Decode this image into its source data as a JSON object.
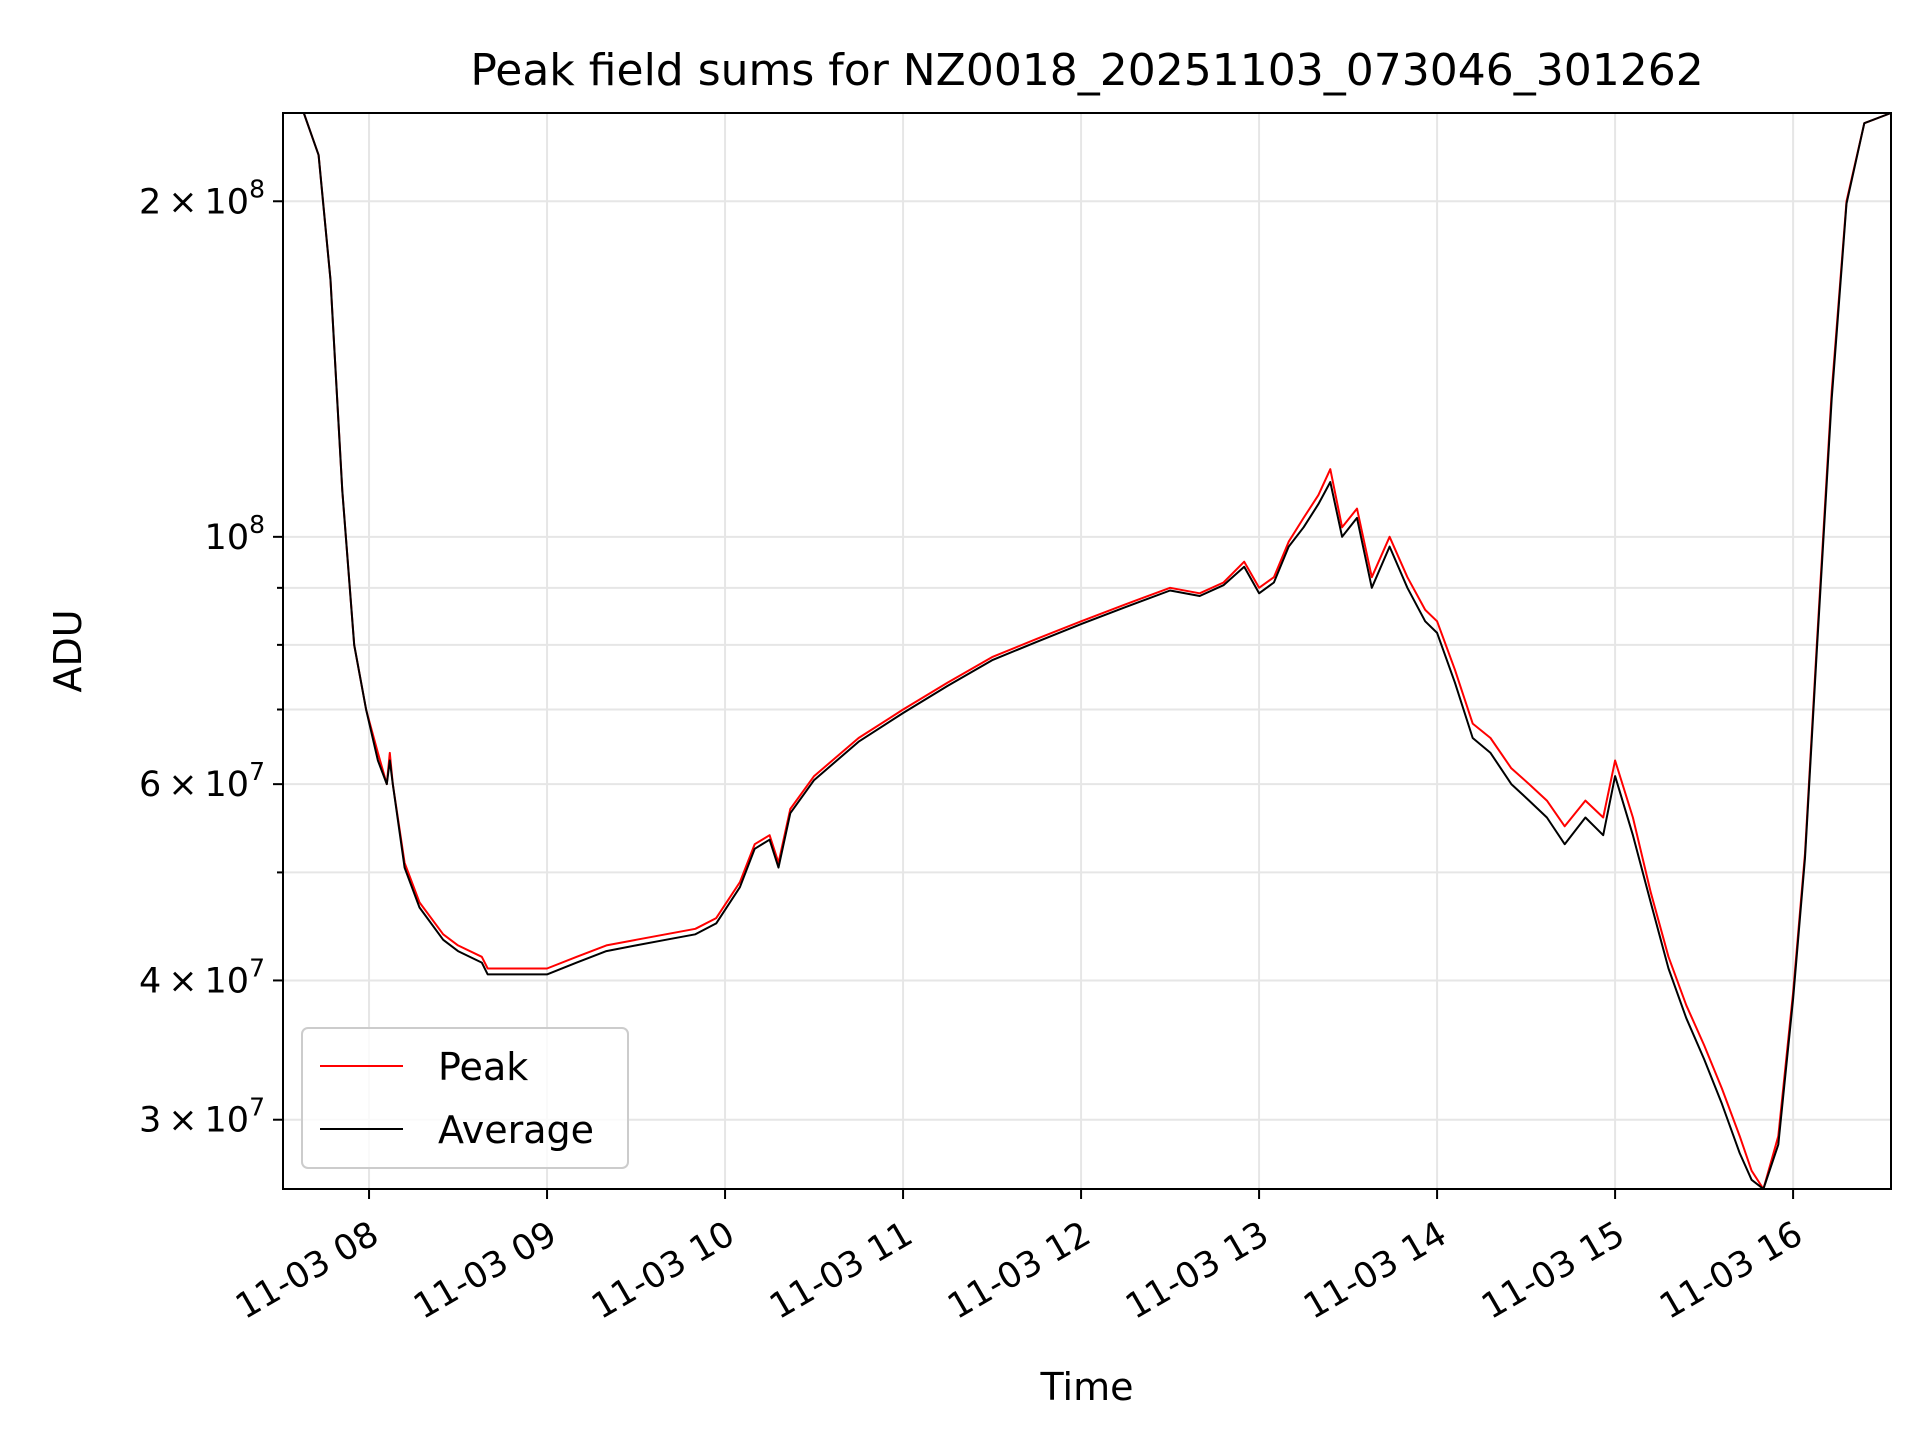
{
  "chart_data": {
    "type": "line",
    "title": "Peak field sums for NZ0018_20251103_073046_301262",
    "xlabel": "Time",
    "ylabel": "ADU",
    "y_scale": "log",
    "ylim": [
      26000000,
      240000000
    ],
    "xlim": [
      "2025-11-03 07:31",
      "2025-11-03 16:33"
    ],
    "grid": true,
    "legend_position": "bottom-left",
    "x_ticks": [
      {
        "label": "11-03 08",
        "value": "2025-11-03 08:00"
      },
      {
        "label": "11-03 09",
        "value": "2025-11-03 09:00"
      },
      {
        "label": "11-03 10",
        "value": "2025-11-03 10:00"
      },
      {
        "label": "11-03 11",
        "value": "2025-11-03 11:00"
      },
      {
        "label": "11-03 12",
        "value": "2025-11-03 12:00"
      },
      {
        "label": "11-03 13",
        "value": "2025-11-03 13:00"
      },
      {
        "label": "11-03 14",
        "value": "2025-11-03 14:00"
      },
      {
        "label": "11-03 15",
        "value": "2025-11-03 15:00"
      },
      {
        "label": "11-03 16",
        "value": "2025-11-03 16:00"
      }
    ],
    "y_ticks": [
      {
        "mantissa": "3",
        "exp": "7",
        "value": 30000000
      },
      {
        "mantissa": "4",
        "exp": "7",
        "value": 40000000
      },
      {
        "mantissa": "6",
        "exp": "7",
        "value": 60000000
      },
      {
        "mantissa": "",
        "exp": "8",
        "value": 100000000
      },
      {
        "mantissa": "2",
        "exp": "8",
        "value": 200000000
      }
    ],
    "y_minor_gridlines": [
      50000000,
      70000000,
      80000000,
      90000000
    ],
    "series": [
      {
        "name": "Peak",
        "color": "#ff0000",
        "x": [
          "2025-11-03 07:31",
          "2025-11-03 07:38",
          "2025-11-03 07:43",
          "2025-11-03 07:47",
          "2025-11-03 07:51",
          "2025-11-03 07:55",
          "2025-11-03 07:59",
          "2025-11-03 08:03",
          "2025-11-03 08:06",
          "2025-11-03 08:07",
          "2025-11-03 08:08",
          "2025-11-03 08:12",
          "2025-11-03 08:17",
          "2025-11-03 08:25",
          "2025-11-03 08:30",
          "2025-11-03 08:38",
          "2025-11-03 08:40",
          "2025-11-03 08:50",
          "2025-11-03 09:00",
          "2025-11-03 09:10",
          "2025-11-03 09:20",
          "2025-11-03 09:30",
          "2025-11-03 09:40",
          "2025-11-03 09:50",
          "2025-11-03 09:57",
          "2025-11-03 10:05",
          "2025-11-03 10:10",
          "2025-11-03 10:15",
          "2025-11-03 10:18",
          "2025-11-03 10:22",
          "2025-11-03 10:30",
          "2025-11-03 10:45",
          "2025-11-03 11:00",
          "2025-11-03 11:15",
          "2025-11-03 11:30",
          "2025-11-03 11:45",
          "2025-11-03 12:00",
          "2025-11-03 12:15",
          "2025-11-03 12:30",
          "2025-11-03 12:40",
          "2025-11-03 12:48",
          "2025-11-03 12:55",
          "2025-11-03 13:00",
          "2025-11-03 13:05",
          "2025-11-03 13:10",
          "2025-11-03 13:15",
          "2025-11-03 13:20",
          "2025-11-03 13:24",
          "2025-11-03 13:28",
          "2025-11-03 13:33",
          "2025-11-03 13:38",
          "2025-11-03 13:44",
          "2025-11-03 13:50",
          "2025-11-03 13:56",
          "2025-11-03 14:00",
          "2025-11-03 14:06",
          "2025-11-03 14:12",
          "2025-11-03 14:18",
          "2025-11-03 14:25",
          "2025-11-03 14:31",
          "2025-11-03 14:37",
          "2025-11-03 14:43",
          "2025-11-03 14:50",
          "2025-11-03 14:56",
          "2025-11-03 15:00",
          "2025-11-03 15:06",
          "2025-11-03 15:12",
          "2025-11-03 15:18",
          "2025-11-03 15:24",
          "2025-11-03 15:30",
          "2025-11-03 15:36",
          "2025-11-03 15:42",
          "2025-11-03 15:46",
          "2025-11-03 15:50",
          "2025-11-03 15:55",
          "2025-11-03 16:00",
          "2025-11-03 16:04",
          "2025-11-03 16:08",
          "2025-11-03 16:13",
          "2025-11-03 16:18",
          "2025-11-03 16:24",
          "2025-11-03 16:33"
        ],
        "y": [
          240000000,
          240000000,
          220000000,
          170000000,
          110000000,
          80000000,
          70000000,
          64000000,
          60000000,
          64000000,
          60000000,
          51000000,
          47000000,
          44000000,
          43000000,
          42000000,
          41000000,
          41000000,
          41000000,
          42000000,
          43000000,
          43500000,
          44000000,
          44500000,
          45500000,
          49000000,
          53000000,
          54000000,
          51000000,
          57000000,
          61000000,
          66000000,
          70000000,
          74000000,
          78000000,
          81000000,
          84000000,
          87000000,
          90000000,
          89000000,
          91000000,
          95000000,
          90000000,
          92000000,
          99000000,
          104000000,
          109000000,
          115000000,
          102000000,
          106000000,
          92000000,
          100000000,
          92000000,
          86000000,
          84000000,
          76000000,
          68000000,
          66000000,
          62000000,
          60000000,
          58000000,
          55000000,
          58000000,
          56000000,
          63000000,
          56000000,
          48000000,
          42000000,
          38000000,
          35000000,
          32000000,
          29000000,
          27000000,
          26000000,
          29000000,
          39000000,
          52000000,
          80000000,
          135000000,
          200000000,
          235000000,
          240000000
        ]
      },
      {
        "name": "Average",
        "color": "#000000",
        "x": [
          "2025-11-03 07:31",
          "2025-11-03 07:38",
          "2025-11-03 07:43",
          "2025-11-03 07:47",
          "2025-11-03 07:51",
          "2025-11-03 07:55",
          "2025-11-03 07:59",
          "2025-11-03 08:03",
          "2025-11-03 08:06",
          "2025-11-03 08:07",
          "2025-11-03 08:08",
          "2025-11-03 08:12",
          "2025-11-03 08:17",
          "2025-11-03 08:25",
          "2025-11-03 08:30",
          "2025-11-03 08:38",
          "2025-11-03 08:40",
          "2025-11-03 08:50",
          "2025-11-03 09:00",
          "2025-11-03 09:10",
          "2025-11-03 09:20",
          "2025-11-03 09:30",
          "2025-11-03 09:40",
          "2025-11-03 09:50",
          "2025-11-03 09:57",
          "2025-11-03 10:05",
          "2025-11-03 10:10",
          "2025-11-03 10:15",
          "2025-11-03 10:18",
          "2025-11-03 10:22",
          "2025-11-03 10:30",
          "2025-11-03 10:45",
          "2025-11-03 11:00",
          "2025-11-03 11:15",
          "2025-11-03 11:30",
          "2025-11-03 11:45",
          "2025-11-03 12:00",
          "2025-11-03 12:15",
          "2025-11-03 12:30",
          "2025-11-03 12:40",
          "2025-11-03 12:48",
          "2025-11-03 12:55",
          "2025-11-03 13:00",
          "2025-11-03 13:05",
          "2025-11-03 13:10",
          "2025-11-03 13:15",
          "2025-11-03 13:20",
          "2025-11-03 13:24",
          "2025-11-03 13:28",
          "2025-11-03 13:33",
          "2025-11-03 13:38",
          "2025-11-03 13:44",
          "2025-11-03 13:50",
          "2025-11-03 13:56",
          "2025-11-03 14:00",
          "2025-11-03 14:06",
          "2025-11-03 14:12",
          "2025-11-03 14:18",
          "2025-11-03 14:25",
          "2025-11-03 14:31",
          "2025-11-03 14:37",
          "2025-11-03 14:43",
          "2025-11-03 14:50",
          "2025-11-03 14:56",
          "2025-11-03 15:00",
          "2025-11-03 15:06",
          "2025-11-03 15:12",
          "2025-11-03 15:18",
          "2025-11-03 15:24",
          "2025-11-03 15:30",
          "2025-11-03 15:36",
          "2025-11-03 15:42",
          "2025-11-03 15:46",
          "2025-11-03 15:50",
          "2025-11-03 15:55",
          "2025-11-03 16:00",
          "2025-11-03 16:04",
          "2025-11-03 16:08",
          "2025-11-03 16:13",
          "2025-11-03 16:18",
          "2025-11-03 16:24",
          "2025-11-03 16:33"
        ],
        "y": [
          240000000,
          240000000,
          220000000,
          170000000,
          110000000,
          80000000,
          70000000,
          63000000,
          60000000,
          63000000,
          60000000,
          50500000,
          46500000,
          43500000,
          42500000,
          41500000,
          40500000,
          40500000,
          40500000,
          41500000,
          42500000,
          43000000,
          43500000,
          44000000,
          45000000,
          48500000,
          52500000,
          53500000,
          50500000,
          56500000,
          60500000,
          65500000,
          69500000,
          73500000,
          77500000,
          80500000,
          83500000,
          86500000,
          89500000,
          88500000,
          90500000,
          94000000,
          89000000,
          91000000,
          98000000,
          102000000,
          107000000,
          112000000,
          100000000,
          104000000,
          90000000,
          98000000,
          90000000,
          84000000,
          82000000,
          74000000,
          66000000,
          64000000,
          60000000,
          58000000,
          56000000,
          53000000,
          56000000,
          54000000,
          61000000,
          54000000,
          47000000,
          41000000,
          37000000,
          34000000,
          31000000,
          28000000,
          26500000,
          26000000,
          28500000,
          38500000,
          51500000,
          79000000,
          133000000,
          199000000,
          235000000,
          240000000
        ]
      }
    ]
  }
}
